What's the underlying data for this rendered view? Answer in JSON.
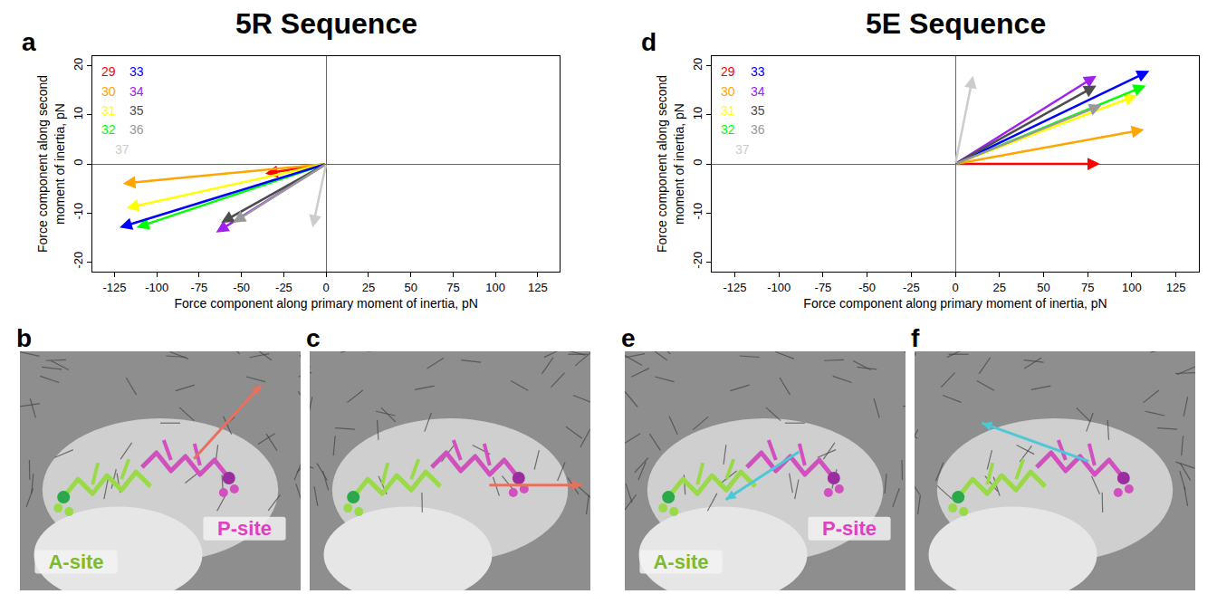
{
  "chart_data": [
    {
      "type": "vector",
      "letter": "a",
      "title": "5R Sequence",
      "x_label": "Force component along primary moment of inertia, pN",
      "y_label": "Force component along second moment of inertia, pN",
      "xlim": [
        -138,
        138
      ],
      "xticks": [
        -125,
        -100,
        -75,
        -50,
        -25,
        0,
        25,
        50,
        75,
        100,
        125
      ],
      "ylim": [
        -22,
        22
      ],
      "yticks": [
        -20,
        -10,
        0,
        10,
        20
      ],
      "grid": false,
      "legend": "top left",
      "series": [
        {
          "name": "29",
          "color": "#ff0000",
          "x": -36,
          "y": -2
        },
        {
          "name": "30",
          "color": "#ffa500",
          "x": -120,
          "y": -4
        },
        {
          "name": "31",
          "color": "#ffff00",
          "x": -118,
          "y": -9
        },
        {
          "name": "32",
          "color": "#00ff00",
          "x": -112,
          "y": -13
        },
        {
          "name": "33",
          "color": "#0000ff",
          "x": -122,
          "y": -13
        },
        {
          "name": "34",
          "color": "#a020f0",
          "x": -65,
          "y": -14
        },
        {
          "name": "35",
          "color": "#4d4d4d",
          "x": -62,
          "y": -12
        },
        {
          "name": "36",
          "color": "#999999",
          "x": -55,
          "y": -12
        },
        {
          "name": "37",
          "color": "#cccccc",
          "x": -8,
          "y": -13
        }
      ]
    },
    {
      "type": "vector",
      "letter": "d",
      "title": "5E Sequence",
      "x_label": "Force component along primary moment of inertia, pN",
      "y_label": "Force component along second moment of inertia, pN",
      "xlim": [
        -138,
        138
      ],
      "xticks": [
        -125,
        -100,
        -75,
        -50,
        -25,
        0,
        25,
        50,
        75,
        100,
        125
      ],
      "ylim": [
        -22,
        22
      ],
      "yticks": [
        -20,
        -10,
        0,
        10,
        20
      ],
      "grid": false,
      "legend": "top left",
      "series": [
        {
          "name": "29",
          "color": "#ff0000",
          "x": 82,
          "y": 0
        },
        {
          "name": "30",
          "color": "#ffa500",
          "x": 107,
          "y": 7
        },
        {
          "name": "31",
          "color": "#ffff00",
          "x": 103,
          "y": 14
        },
        {
          "name": "32",
          "color": "#00ff00",
          "x": 108,
          "y": 16
        },
        {
          "name": "33",
          "color": "#0000ff",
          "x": 110,
          "y": 19
        },
        {
          "name": "34",
          "color": "#a020f0",
          "x": 80,
          "y": 18
        },
        {
          "name": "35",
          "color": "#4d4d4d",
          "x": 80,
          "y": 16
        },
        {
          "name": "36",
          "color": "#999999",
          "x": 83,
          "y": 12
        },
        {
          "name": "37",
          "color": "#cccccc",
          "x": 10,
          "y": 18
        }
      ]
    }
  ],
  "image_panels": [
    [
      {
        "letter": "b",
        "labels": [
          "A-site",
          "P-site"
        ]
      },
      {
        "letter": "c",
        "labels": []
      }
    ],
    [
      {
        "letter": "e",
        "labels": [
          "A-site",
          "P-site"
        ]
      },
      {
        "letter": "f",
        "labels": []
      }
    ]
  ]
}
